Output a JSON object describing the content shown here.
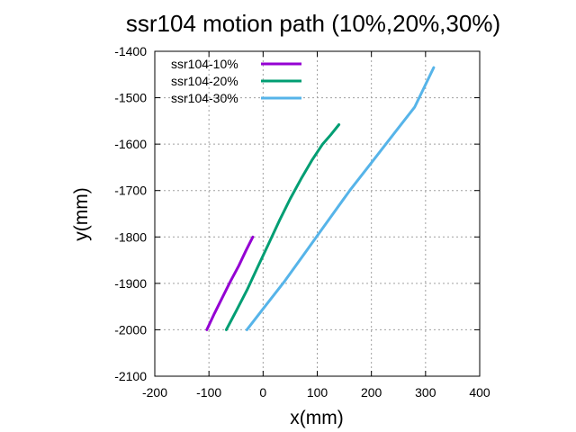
{
  "chart_data": {
    "type": "line",
    "title": "ssr104 motion path (10%,20%,30%)",
    "xlabel": "x(mm)",
    "ylabel": "y(mm)",
    "xlim": [
      -200,
      400
    ],
    "ylim": [
      -2100,
      -1400
    ],
    "xticks": [
      -200,
      -100,
      0,
      100,
      200,
      300,
      400
    ],
    "yticks": [
      -2100,
      -2000,
      -1900,
      -1800,
      -1700,
      -1600,
      -1500,
      -1400
    ],
    "grid": true,
    "legend_position": "top-left",
    "series": [
      {
        "name": "ssr104-10%",
        "color": "#9400d3",
        "x": [
          -104,
          -90,
          -75,
          -60,
          -45,
          -32,
          -19
        ],
        "y": [
          -2000,
          -1965,
          -1930,
          -1895,
          -1862,
          -1830,
          -1800
        ]
      },
      {
        "name": "ssr104-20%",
        "color": "#009e73",
        "x": [
          -68,
          -50,
          -30,
          -10,
          10,
          30,
          50,
          70,
          90,
          110,
          125,
          140
        ],
        "y": [
          -2000,
          -1960,
          -1915,
          -1865,
          -1815,
          -1765,
          -1718,
          -1675,
          -1635,
          -1600,
          -1580,
          -1558
        ]
      },
      {
        "name": "ssr104-30%",
        "color": "#56b4e9",
        "x": [
          -30,
          0,
          40,
          80,
          120,
          160,
          200,
          240,
          280,
          315
        ],
        "y": [
          -2000,
          -1955,
          -1895,
          -1830,
          -1765,
          -1700,
          -1640,
          -1580,
          -1520,
          -1435
        ]
      }
    ]
  }
}
